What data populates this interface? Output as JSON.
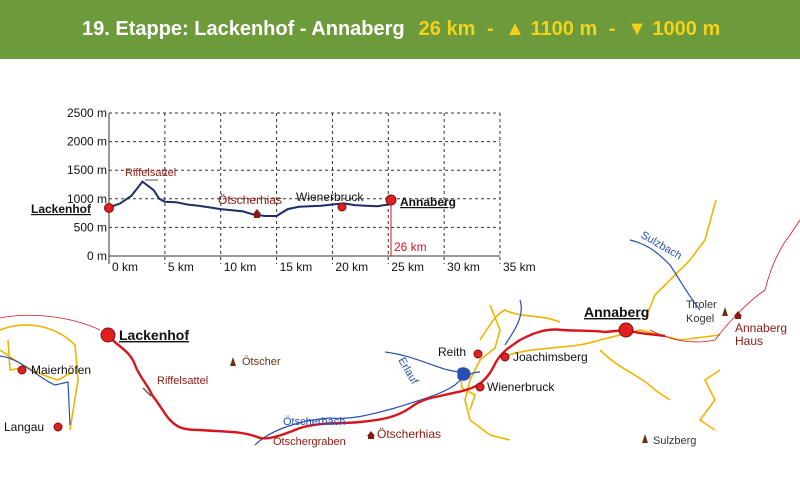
{
  "header": {
    "stage": "19. Etappe: Lackenhof - Annaberg",
    "distance": "26 km",
    "ascent": "1100 m",
    "descent": "1000 m",
    "up_icon": "triangle-up",
    "down_icon": "triangle-down",
    "separator": "-"
  },
  "colors": {
    "header_bg": "#6d9a3a",
    "header_title": "#ffffff",
    "header_stats": "#f2d21a",
    "route": "#d8141c",
    "profile": "#1a2f6a",
    "river": "#2a4fb0",
    "road": "#f0b400",
    "poi_text": "#8b1a10"
  },
  "profile": {
    "y_ticks": [
      "2500 m",
      "2000 m",
      "1500 m",
      "1000 m",
      "500 m",
      "0 m"
    ],
    "x_ticks": [
      "0 km",
      "5 km",
      "10 km",
      "15 km",
      "20 km",
      "25 km",
      "30 km",
      "35 km"
    ],
    "start_label": "Lackenhof",
    "end_label": "Annaberg",
    "end_distance": "26 km",
    "labels": {
      "riffelsattel": "Riffelsattel",
      "oetscherhias": "Ötscherhias",
      "wienerbruck": "Wienerbruck"
    },
    "chart_data": {
      "type": "line",
      "x": [
        0,
        1,
        2,
        3,
        4,
        4.5,
        5,
        6,
        7,
        8,
        9,
        10,
        11,
        12,
        13,
        14,
        15,
        16,
        17,
        18,
        19,
        20,
        21,
        22,
        23,
        24,
        25
      ],
      "y": [
        850,
        920,
        1050,
        1300,
        1150,
        1000,
        950,
        940,
        900,
        880,
        850,
        820,
        800,
        780,
        720,
        700,
        700,
        820,
        860,
        870,
        880,
        900,
        920,
        890,
        880,
        870,
        900
      ],
      "xlim": [
        0,
        35
      ],
      "ylim": [
        0,
        2500
      ],
      "grid": true
    }
  },
  "map": {
    "places": {
      "lackenhof": "Lackenhof",
      "annaberg": "Annaberg",
      "maierhoefen": "Maierhöfen",
      "langau": "Langau",
      "reith": "Reith",
      "joachimsberg": "Joachimsberg",
      "wienerbruck": "Wienerbruck",
      "oetscherhias": "Ötscherhias",
      "annaberg_haus_1": "Annaberg",
      "annaberg_haus_2": "Haus"
    },
    "peaks": {
      "oetscher": "Ötscher",
      "tiroler_1": "Tiroler",
      "tiroler_2": "Kogel",
      "sulzberg": "Sulzberg"
    },
    "features": {
      "riffelsattel": "Riffelsattel",
      "oetscherbach": "Ötscherbach",
      "oetschergraben": "Ötschergraben",
      "erlauf": "Erlauf",
      "sulzbach": "Sulzbach"
    }
  }
}
